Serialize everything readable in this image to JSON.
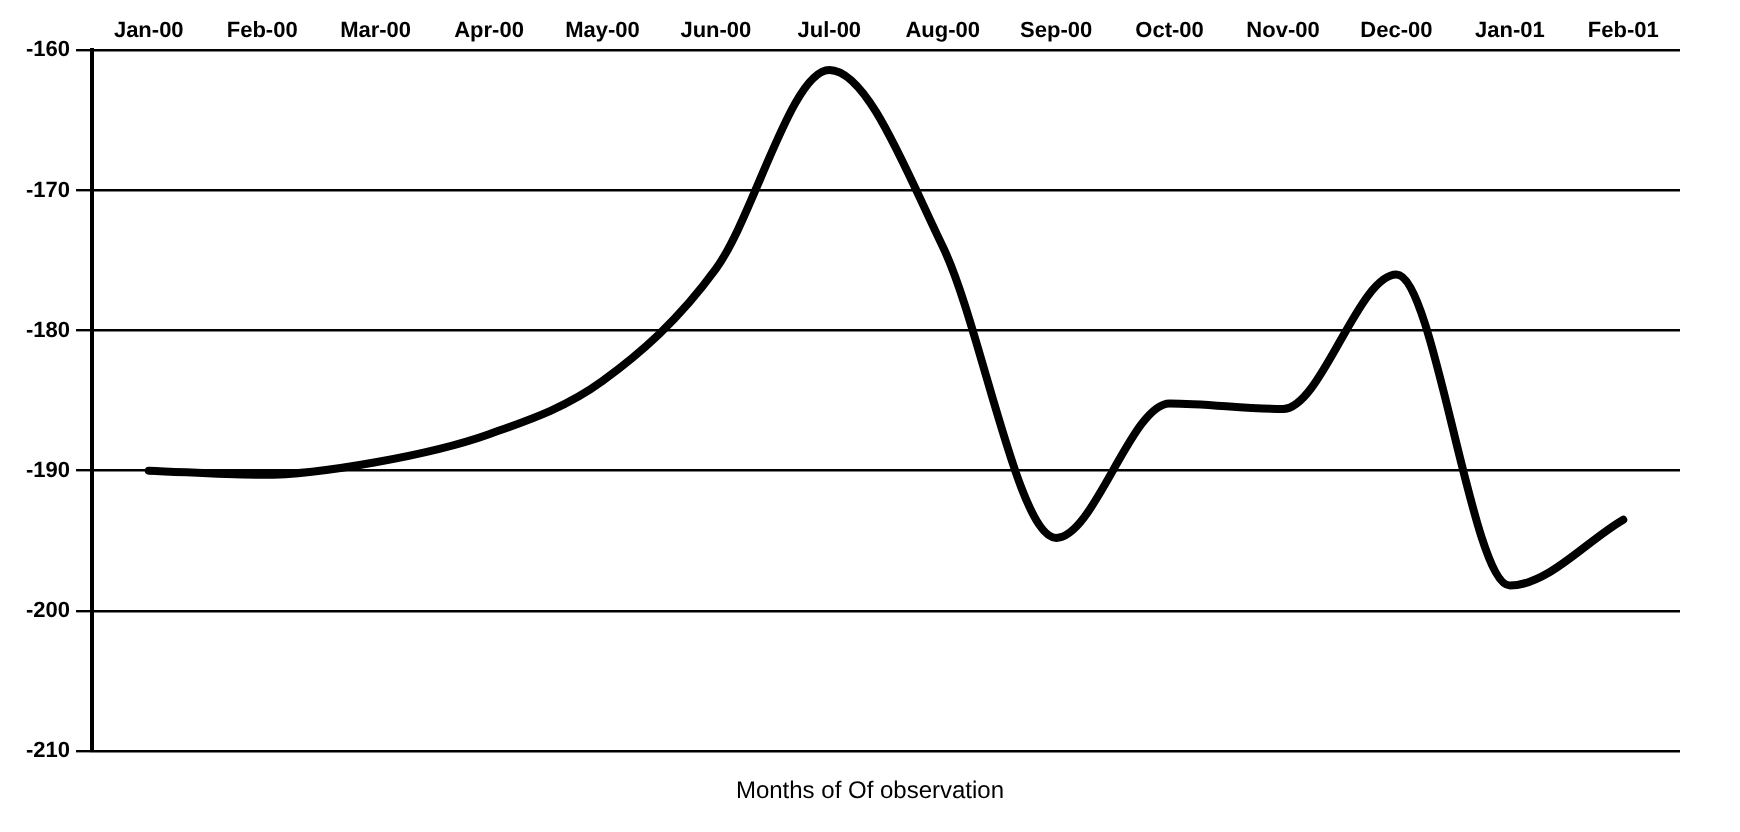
{
  "chart_data": {
    "type": "line",
    "xlabel": "Months of Of observation",
    "categories": [
      "Jan-00",
      "Feb-00",
      "Mar-00",
      "Apr-00",
      "May-00",
      "Jun-00",
      "Jul-00",
      "Aug-00",
      "Sep-00",
      "Oct-00",
      "Nov-00",
      "Dec-00",
      "Jan-01",
      "Feb-01"
    ],
    "series": [
      {
        "color": "#000000",
        "values": [
          -190,
          -190.3,
          -189.4,
          -187.4,
          -183.6,
          -175.6,
          -161.4,
          -174,
          -194.8,
          -185.2,
          -185.6,
          -176,
          -198.2,
          -193.5
        ]
      }
    ],
    "ylim": [
      -210,
      -160
    ],
    "yticks": [
      -210,
      -200,
      -190,
      -180,
      -170,
      -160
    ],
    "grid": "y",
    "legend": false,
    "marker": "none",
    "line_style": "solid"
  }
}
